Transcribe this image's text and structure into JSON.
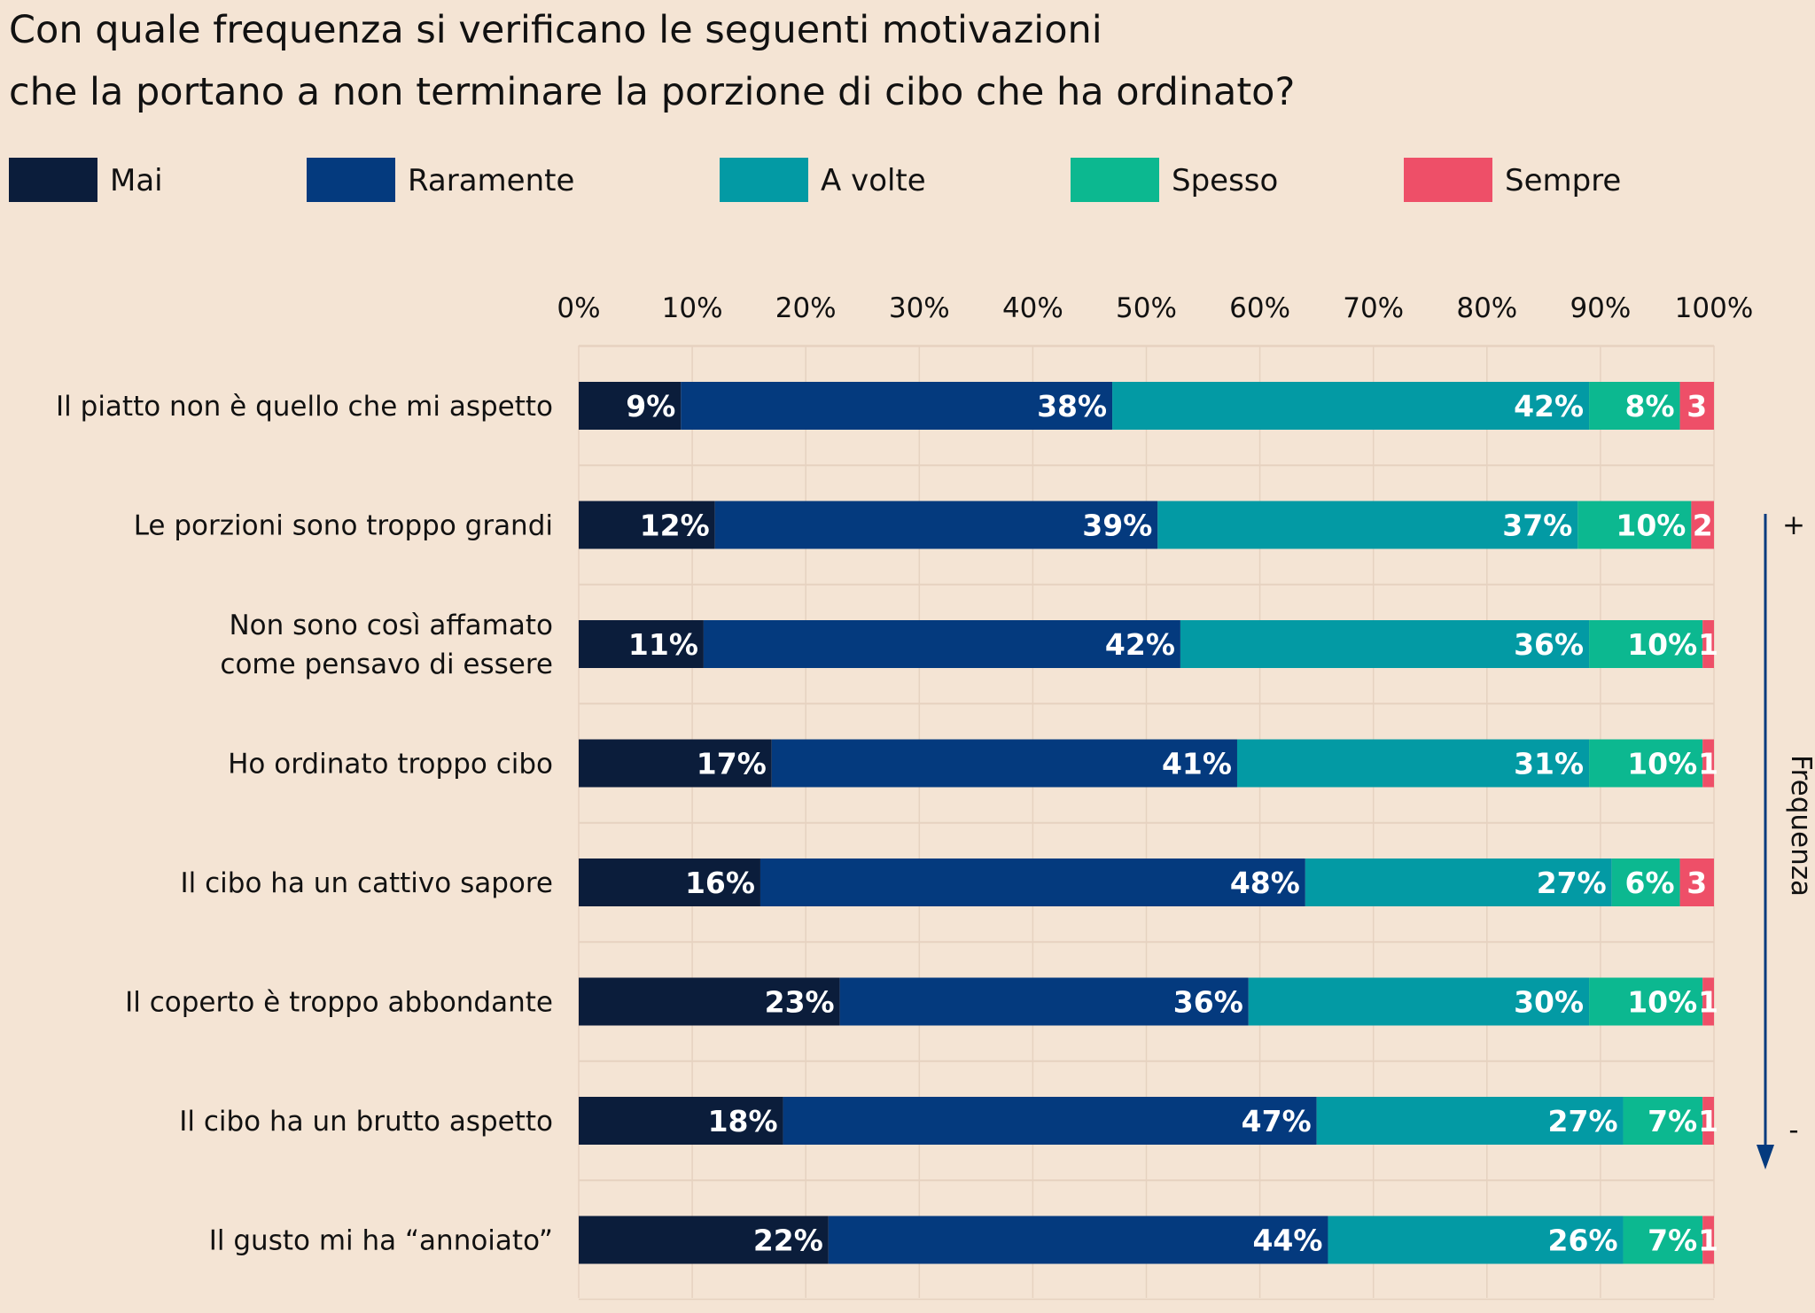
{
  "chart_data": {
    "type": "bar",
    "orientation": "horizontal",
    "stacked": true,
    "title": "Con quale frequenza si verificano le seguenti motivazioni che la portano a non terminare la porzione di cibo che ha ordinato?",
    "title_lines": [
      "Con quale frequenza si verificano le seguenti motivazioni",
      "che la portano a non terminare la porzione di cibo che ha ordinato?"
    ],
    "xlim": [
      0,
      100
    ],
    "x_ticks": [
      0,
      10,
      20,
      30,
      40,
      50,
      60,
      70,
      80,
      90,
      100
    ],
    "x_tick_labels": [
      "0%",
      "10%",
      "20%",
      "30%",
      "40%",
      "50%",
      "60%",
      "70%",
      "80%",
      "90%",
      "100%"
    ],
    "grid": true,
    "legend_position": "top",
    "categories": [
      [
        "Il piatto non è quello che mi aspetto"
      ],
      [
        "Le porzioni sono troppo grandi"
      ],
      [
        "Non sono così affamato",
        "come pensavo di essere"
      ],
      [
        "Ho ordinato troppo cibo"
      ],
      [
        "Il cibo ha un cattivo sapore"
      ],
      [
        "Il coperto è troppo abbondante"
      ],
      [
        "Il cibo ha un brutto aspetto"
      ],
      [
        "Il gusto mi ha “annoiato”"
      ]
    ],
    "series": [
      {
        "name": "Mai",
        "color": "#0b1d3b",
        "values": [
          9,
          12,
          11,
          17,
          16,
          23,
          18,
          22
        ],
        "labels": [
          "9%",
          "12%",
          "11%",
          "17%",
          "16%",
          "23%",
          "18%",
          "22%"
        ]
      },
      {
        "name": "Raramente",
        "color": "#043a7e",
        "values": [
          38,
          39,
          42,
          41,
          48,
          36,
          47,
          44
        ],
        "labels": [
          "38%",
          "39%",
          "42%",
          "41%",
          "48%",
          "36%",
          "47%",
          "44%"
        ]
      },
      {
        "name": "A volte",
        "color": "#039aa4",
        "values": [
          42,
          37,
          36,
          31,
          27,
          30,
          27,
          26
        ],
        "labels": [
          "42%",
          "37%",
          "36%",
          "31%",
          "27%",
          "30%",
          "27%",
          "26%"
        ]
      },
      {
        "name": "Spesso",
        "color": "#0cb890",
        "values": [
          8,
          10,
          10,
          10,
          6,
          10,
          7,
          7
        ],
        "labels": [
          "8%",
          "10%",
          "10%",
          "10%",
          "6%",
          "10%",
          "7%",
          "7%"
        ]
      },
      {
        "name": "Sempre",
        "color": "#ee4f68",
        "values": [
          3,
          2,
          1,
          1,
          3,
          1,
          1,
          1
        ],
        "labels": [
          "3",
          "2",
          "1",
          "1",
          "3",
          "1",
          "1",
          "1"
        ]
      }
    ],
    "side_axis": {
      "label": "Frequenza",
      "top_symbol": "+",
      "bottom_symbol": "-",
      "arrow_color": "#043a7e"
    }
  }
}
